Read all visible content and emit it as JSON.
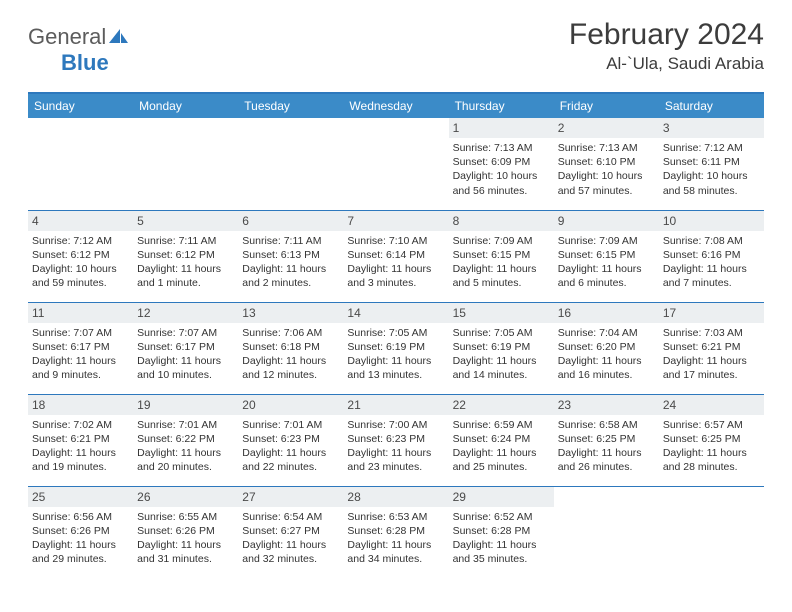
{
  "logo": {
    "text1": "General",
    "text2": "Blue",
    "icon_color": "#2d78bd"
  },
  "title": {
    "month_year": "February 2024",
    "location": "Al-`Ula, Saudi Arabia"
  },
  "colors": {
    "header_bg": "#3b8bc8",
    "header_text": "#ffffff",
    "rule": "#2d78bd",
    "daynum_bg": "#eceff1",
    "text": "#333333",
    "logo_gray": "#5c5c5c"
  },
  "daysOfWeek": [
    "Sunday",
    "Monday",
    "Tuesday",
    "Wednesday",
    "Thursday",
    "Friday",
    "Saturday"
  ],
  "grid": [
    [
      null,
      null,
      null,
      null,
      {
        "n": "1",
        "sunrise": "7:13 AM",
        "sunset": "6:09 PM",
        "daylight": "10 hours and 56 minutes."
      },
      {
        "n": "2",
        "sunrise": "7:13 AM",
        "sunset": "6:10 PM",
        "daylight": "10 hours and 57 minutes."
      },
      {
        "n": "3",
        "sunrise": "7:12 AM",
        "sunset": "6:11 PM",
        "daylight": "10 hours and 58 minutes."
      }
    ],
    [
      {
        "n": "4",
        "sunrise": "7:12 AM",
        "sunset": "6:12 PM",
        "daylight": "10 hours and 59 minutes."
      },
      {
        "n": "5",
        "sunrise": "7:11 AM",
        "sunset": "6:12 PM",
        "daylight": "11 hours and 1 minute."
      },
      {
        "n": "6",
        "sunrise": "7:11 AM",
        "sunset": "6:13 PM",
        "daylight": "11 hours and 2 minutes."
      },
      {
        "n": "7",
        "sunrise": "7:10 AM",
        "sunset": "6:14 PM",
        "daylight": "11 hours and 3 minutes."
      },
      {
        "n": "8",
        "sunrise": "7:09 AM",
        "sunset": "6:15 PM",
        "daylight": "11 hours and 5 minutes."
      },
      {
        "n": "9",
        "sunrise": "7:09 AM",
        "sunset": "6:15 PM",
        "daylight": "11 hours and 6 minutes."
      },
      {
        "n": "10",
        "sunrise": "7:08 AM",
        "sunset": "6:16 PM",
        "daylight": "11 hours and 7 minutes."
      }
    ],
    [
      {
        "n": "11",
        "sunrise": "7:07 AM",
        "sunset": "6:17 PM",
        "daylight": "11 hours and 9 minutes."
      },
      {
        "n": "12",
        "sunrise": "7:07 AM",
        "sunset": "6:17 PM",
        "daylight": "11 hours and 10 minutes."
      },
      {
        "n": "13",
        "sunrise": "7:06 AM",
        "sunset": "6:18 PM",
        "daylight": "11 hours and 12 minutes."
      },
      {
        "n": "14",
        "sunrise": "7:05 AM",
        "sunset": "6:19 PM",
        "daylight": "11 hours and 13 minutes."
      },
      {
        "n": "15",
        "sunrise": "7:05 AM",
        "sunset": "6:19 PM",
        "daylight": "11 hours and 14 minutes."
      },
      {
        "n": "16",
        "sunrise": "7:04 AM",
        "sunset": "6:20 PM",
        "daylight": "11 hours and 16 minutes."
      },
      {
        "n": "17",
        "sunrise": "7:03 AM",
        "sunset": "6:21 PM",
        "daylight": "11 hours and 17 minutes."
      }
    ],
    [
      {
        "n": "18",
        "sunrise": "7:02 AM",
        "sunset": "6:21 PM",
        "daylight": "11 hours and 19 minutes."
      },
      {
        "n": "19",
        "sunrise": "7:01 AM",
        "sunset": "6:22 PM",
        "daylight": "11 hours and 20 minutes."
      },
      {
        "n": "20",
        "sunrise": "7:01 AM",
        "sunset": "6:23 PM",
        "daylight": "11 hours and 22 minutes."
      },
      {
        "n": "21",
        "sunrise": "7:00 AM",
        "sunset": "6:23 PM",
        "daylight": "11 hours and 23 minutes."
      },
      {
        "n": "22",
        "sunrise": "6:59 AM",
        "sunset": "6:24 PM",
        "daylight": "11 hours and 25 minutes."
      },
      {
        "n": "23",
        "sunrise": "6:58 AM",
        "sunset": "6:25 PM",
        "daylight": "11 hours and 26 minutes."
      },
      {
        "n": "24",
        "sunrise": "6:57 AM",
        "sunset": "6:25 PM",
        "daylight": "11 hours and 28 minutes."
      }
    ],
    [
      {
        "n": "25",
        "sunrise": "6:56 AM",
        "sunset": "6:26 PM",
        "daylight": "11 hours and 29 minutes."
      },
      {
        "n": "26",
        "sunrise": "6:55 AM",
        "sunset": "6:26 PM",
        "daylight": "11 hours and 31 minutes."
      },
      {
        "n": "27",
        "sunrise": "6:54 AM",
        "sunset": "6:27 PM",
        "daylight": "11 hours and 32 minutes."
      },
      {
        "n": "28",
        "sunrise": "6:53 AM",
        "sunset": "6:28 PM",
        "daylight": "11 hours and 34 minutes."
      },
      {
        "n": "29",
        "sunrise": "6:52 AM",
        "sunset": "6:28 PM",
        "daylight": "11 hours and 35 minutes."
      },
      null,
      null
    ]
  ],
  "labels": {
    "sunrise": "Sunrise:",
    "sunset": "Sunset:",
    "daylight": "Daylight:"
  }
}
